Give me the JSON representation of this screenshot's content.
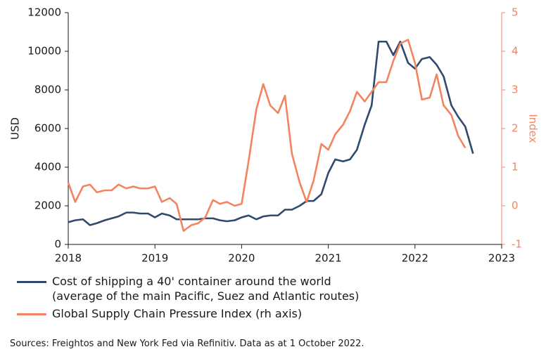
{
  "chart_data": {
    "type": "line",
    "y_label": "USD",
    "y2_label": "Index",
    "source": "Sources: Freightos and New York Fed via Refinitiv. Data as at 1 October 2022.",
    "xlim": [
      2018,
      2023
    ],
    "xticks": [
      2018,
      2019,
      2020,
      2021,
      2022,
      2023
    ],
    "ylim": [
      0,
      12000
    ],
    "yticks": [
      0,
      2000,
      4000,
      6000,
      8000,
      10000,
      12000
    ],
    "y2lim": [
      -1,
      5
    ],
    "y2ticks": [
      -1,
      0,
      1,
      2,
      3,
      4,
      5
    ],
    "series": [
      {
        "name": "Cost of shipping a 40' container around the world\n(average of the main Pacific, Suez and Atlantic routes)",
        "color": "#2f4a6d",
        "x": [
          2018,
          2018.08,
          2018.17,
          2018.25,
          2018.33,
          2018.42,
          2018.5,
          2018.58,
          2018.67,
          2018.75,
          2018.83,
          2018.92,
          2019,
          2019.08,
          2019.17,
          2019.25,
          2019.33,
          2019.42,
          2019.5,
          2019.58,
          2019.67,
          2019.75,
          2019.83,
          2019.92,
          2020,
          2020.08,
          2020.17,
          2020.25,
          2020.33,
          2020.42,
          2020.5,
          2020.58,
          2020.67,
          2020.75,
          2020.83,
          2020.92,
          2021,
          2021.08,
          2021.17,
          2021.25,
          2021.33,
          2021.42,
          2021.5,
          2021.58,
          2021.67,
          2021.75,
          2021.83,
          2021.92,
          2022,
          2022.08,
          2022.17,
          2022.25,
          2022.33,
          2022.42,
          2022.5,
          2022.58,
          2022.67
        ],
        "values": [
          1150,
          1250,
          1300,
          1000,
          1100,
          1250,
          1350,
          1450,
          1650,
          1650,
          1600,
          1600,
          1400,
          1600,
          1500,
          1300,
          1300,
          1300,
          1300,
          1350,
          1350,
          1250,
          1200,
          1250,
          1400,
          1500,
          1300,
          1450,
          1500,
          1500,
          1800,
          1800,
          2000,
          2250,
          2250,
          2600,
          3700,
          4400,
          4300,
          4400,
          4900,
          6200,
          7200,
          10500,
          10500,
          9800,
          10500,
          9400,
          9100,
          9600,
          9700,
          9300,
          8700,
          7200,
          6600,
          6100,
          4700
        ]
      },
      {
        "name": "Global Supply Chain Pressure Index (rh axis)",
        "color": "#f4845f",
        "axis": "y2",
        "x": [
          2018,
          2018.08,
          2018.17,
          2018.25,
          2018.33,
          2018.42,
          2018.5,
          2018.58,
          2018.67,
          2018.75,
          2018.83,
          2018.92,
          2019,
          2019.08,
          2019.17,
          2019.25,
          2019.33,
          2019.42,
          2019.5,
          2019.58,
          2019.67,
          2019.75,
          2019.83,
          2019.92,
          2020,
          2020.08,
          2020.17,
          2020.25,
          2020.33,
          2020.42,
          2020.5,
          2020.58,
          2020.67,
          2020.75,
          2020.83,
          2020.92,
          2021,
          2021.08,
          2021.17,
          2021.25,
          2021.33,
          2021.42,
          2021.5,
          2021.58,
          2021.67,
          2021.75,
          2021.83,
          2021.92,
          2022,
          2022.08,
          2022.17,
          2022.25,
          2022.33,
          2022.42,
          2022.5,
          2022.58
        ],
        "values": [
          0.6,
          0.1,
          0.5,
          0.55,
          0.35,
          0.4,
          0.4,
          0.55,
          0.45,
          0.5,
          0.45,
          0.45,
          0.5,
          0.1,
          0.2,
          0.05,
          -0.65,
          -0.5,
          -0.45,
          -0.3,
          0.15,
          0.05,
          0.1,
          0,
          0.05,
          1.15,
          2.5,
          3.15,
          2.6,
          2.4,
          2.85,
          1.35,
          0.6,
          0.1,
          0.65,
          1.6,
          1.45,
          1.85,
          2.1,
          2.45,
          2.95,
          2.7,
          2.95,
          3.2,
          3.2,
          3.75,
          4.2,
          4.3,
          3.7,
          2.75,
          2.8,
          3.4,
          2.6,
          2.35,
          1.8,
          1.5
        ]
      }
    ]
  }
}
